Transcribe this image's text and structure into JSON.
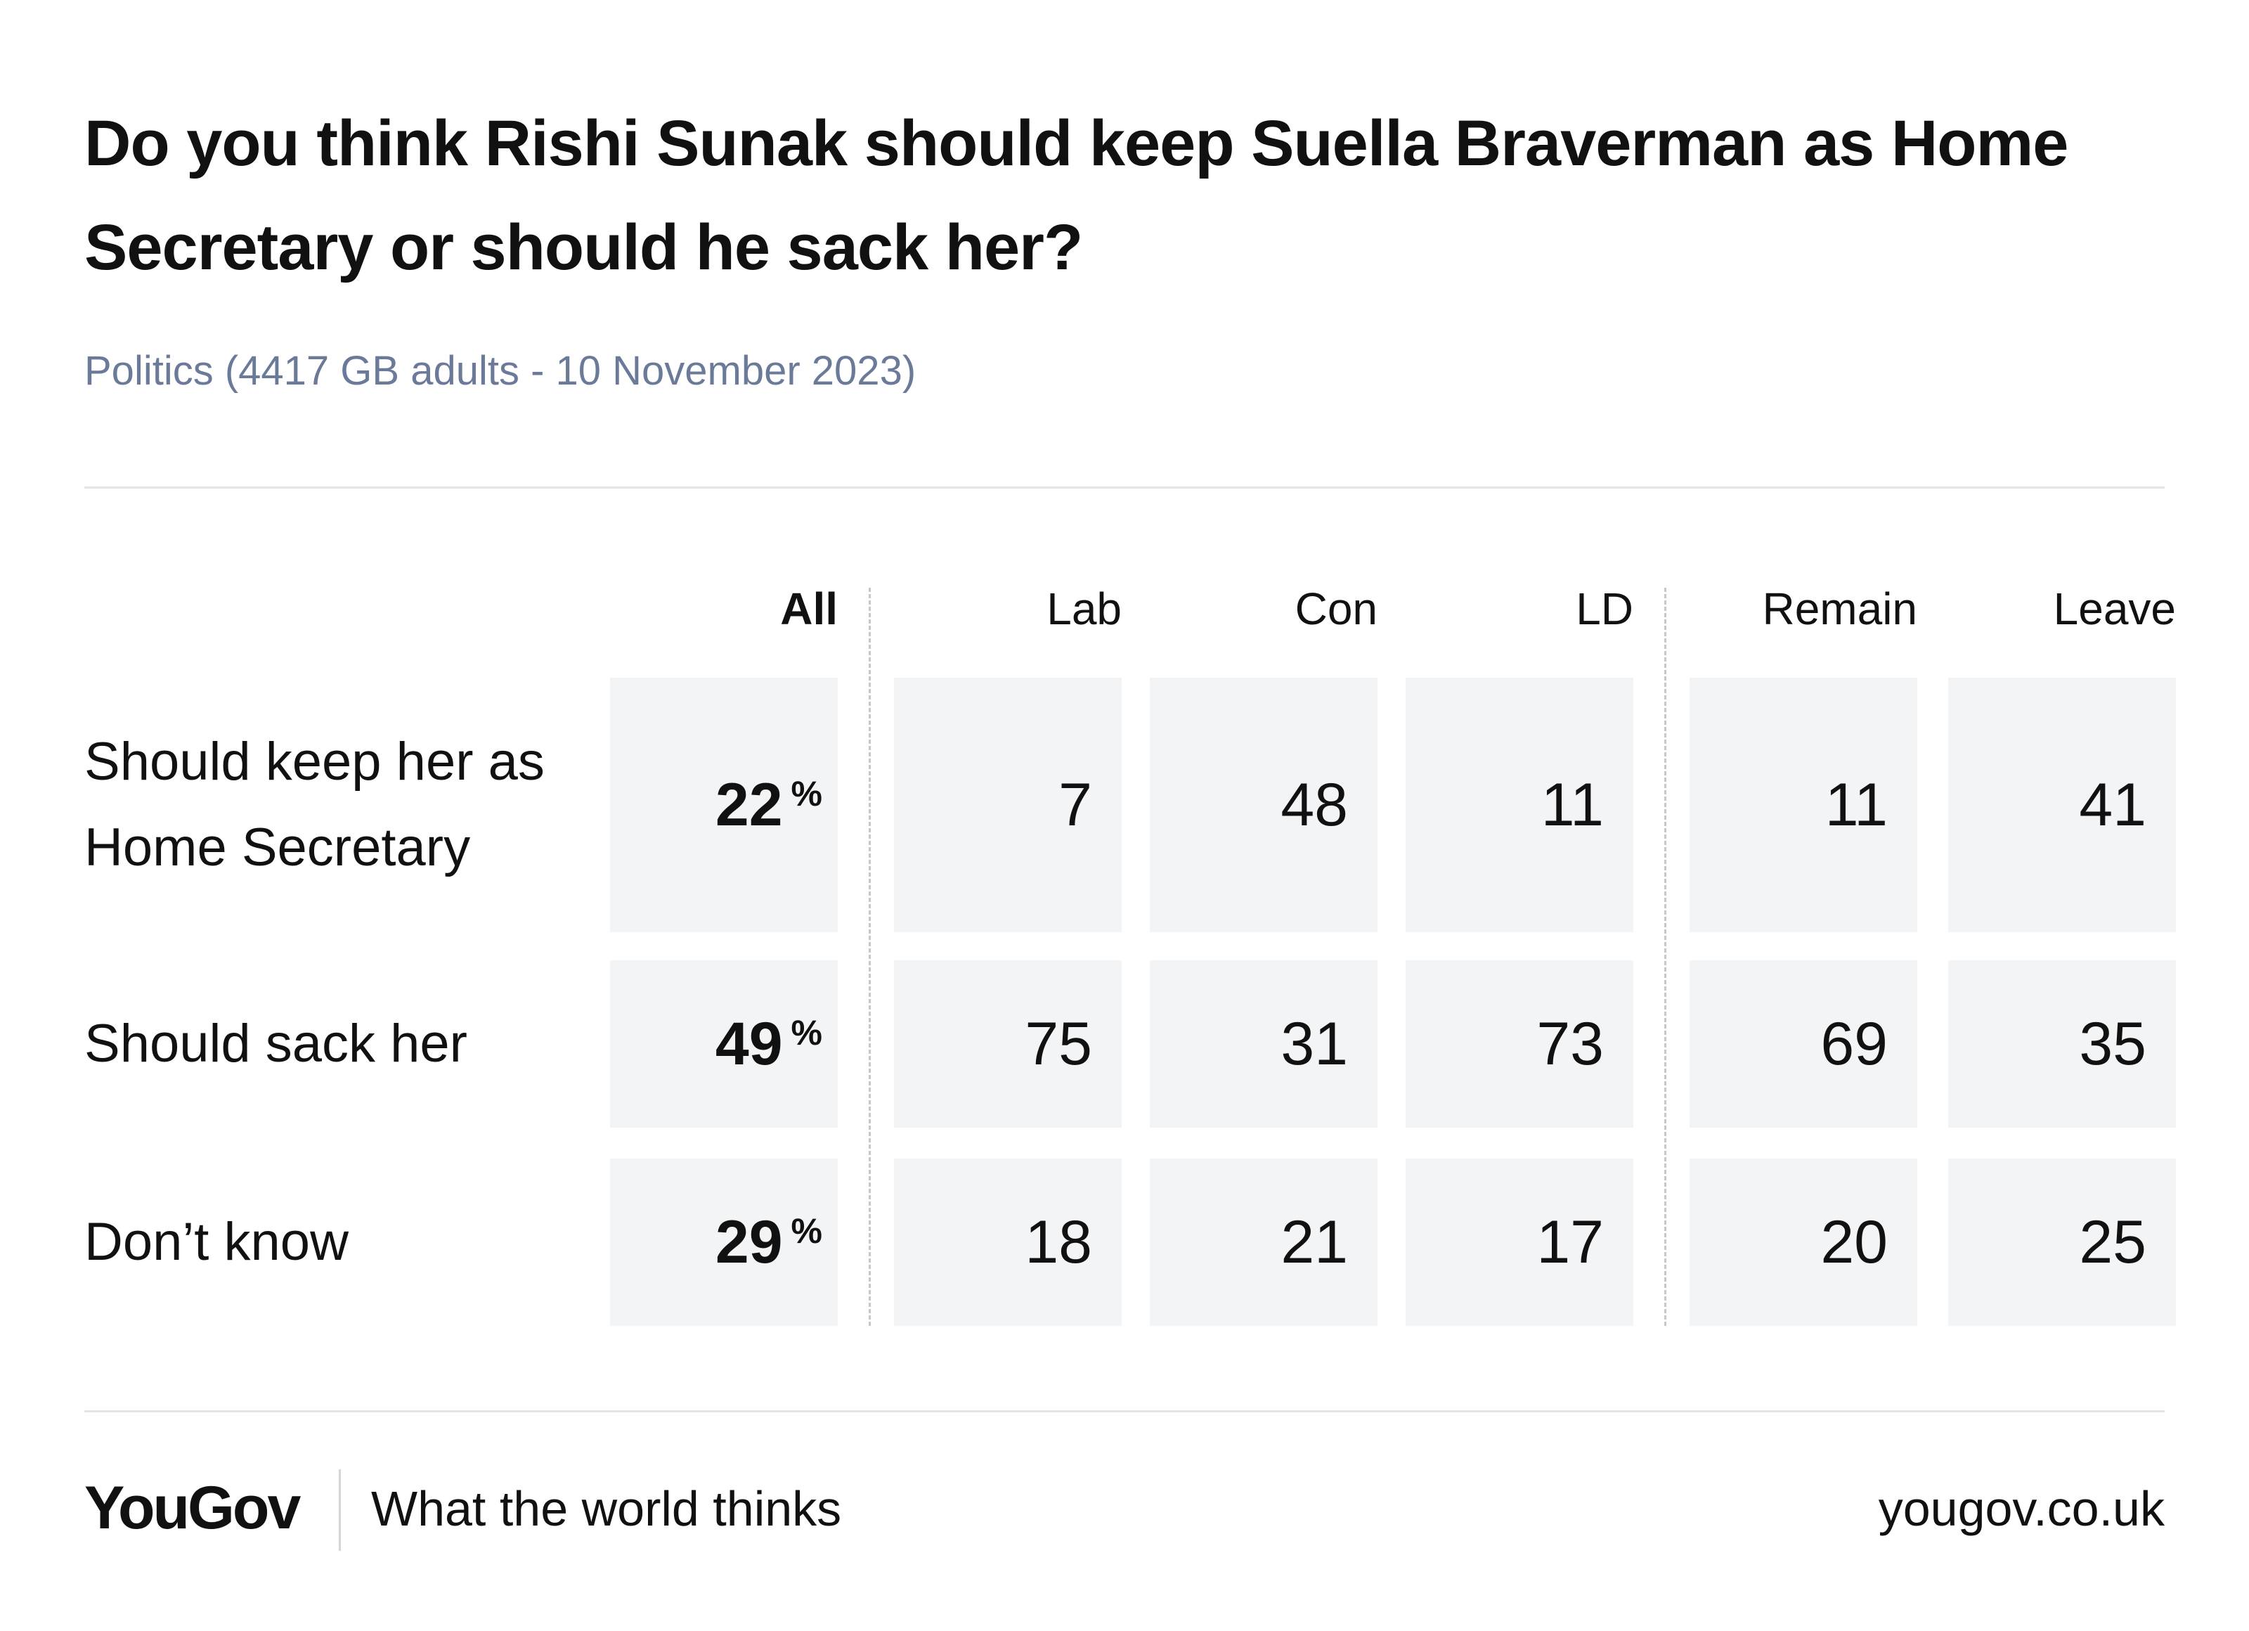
{
  "chart_data": {
    "type": "table",
    "title": "Do you think Rishi Sunak should keep Suella Braverman as Home Secretary or should he sack her?",
    "subtitle": "Politics (4417 GB adults - 10 November 2023)",
    "columns": [
      "All",
      "Lab",
      "Con",
      "LD",
      "Remain",
      "Leave"
    ],
    "column_groups": [
      [
        "All"
      ],
      [
        "Lab",
        "Con",
        "LD"
      ],
      [
        "Remain",
        "Leave"
      ]
    ],
    "unit_label": "%",
    "rows": [
      {
        "label": "Should keep her as Home Secretary",
        "values": [
          22,
          7,
          48,
          11,
          11,
          41
        ]
      },
      {
        "label": "Should sack her",
        "values": [
          49,
          75,
          31,
          73,
          69,
          35
        ]
      },
      {
        "label": "Don’t know",
        "values": [
          29,
          18,
          21,
          17,
          20,
          25
        ]
      }
    ]
  },
  "footer": {
    "brand": "YouGov",
    "tagline": "What the world thinks",
    "site": "yougov.co.uk"
  }
}
